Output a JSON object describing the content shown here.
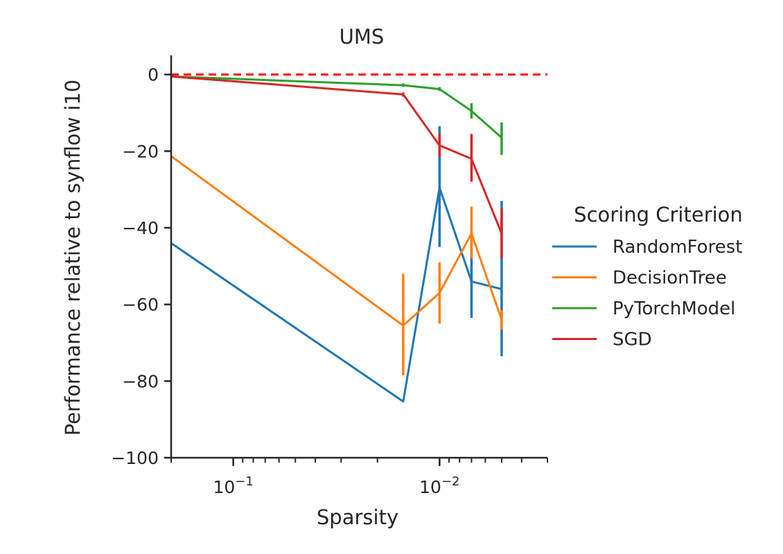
{
  "chart_data": {
    "type": "line",
    "title": "UMS",
    "xlabel": "Sparsity",
    "ylabel": "Performance relative to synflow i10",
    "x_scale": "log",
    "x_reversed": true,
    "xlim": [
      0.2,
      0.003
    ],
    "ylim": [
      -100,
      5
    ],
    "x_ticks": [
      {
        "value": 0.1,
        "label_base": "10",
        "label_exp": "−1"
      },
      {
        "value": 0.01,
        "label_base": "10",
        "label_exp": "−2"
      }
    ],
    "y_ticks": [
      {
        "value": 0,
        "label": "0"
      },
      {
        "value": -20,
        "label": "−20"
      },
      {
        "value": -40,
        "label": "−40"
      },
      {
        "value": -60,
        "label": "−60"
      },
      {
        "value": -80,
        "label": "−80"
      },
      {
        "value": -100,
        "label": "−100"
      }
    ],
    "reference_line": {
      "y": 0,
      "color": "#ff0000",
      "style": "dashed"
    },
    "legend": {
      "title": "Scoring Criterion",
      "placement": "outside-right"
    },
    "series": [
      {
        "name": "RandomForest",
        "color": "#1f77b4",
        "x": [
          0.2,
          0.015,
          0.01,
          0.007,
          0.005
        ],
        "y": [
          -44,
          -85.3,
          -29.5,
          -54,
          -56
        ],
        "err_low": [
          null,
          null,
          -45,
          -63.5,
          -73.5
        ],
        "err_high": [
          null,
          null,
          -13.5,
          -44.5,
          -33
        ]
      },
      {
        "name": "DecisionTree",
        "color": "#ff7f0e",
        "x": [
          0.2,
          0.015,
          0.01,
          0.007,
          0.005
        ],
        "y": [
          -21.3,
          -65.5,
          -57,
          -41.5,
          -64
        ],
        "err_low": [
          null,
          -78.5,
          -65,
          -48,
          -66.5
        ],
        "err_high": [
          null,
          -52,
          -49,
          -34.5,
          -61.5
        ]
      },
      {
        "name": "PyTorchModel",
        "color": "#2ca02c",
        "x": [
          0.2,
          0.015,
          0.01,
          0.007,
          0.005
        ],
        "y": [
          -0.5,
          -2.8,
          -3.8,
          -9.5,
          -16.5
        ],
        "err_low": [
          null,
          -3.2,
          -4.3,
          -11.5,
          -21
        ],
        "err_high": [
          null,
          -2.3,
          -3.3,
          -7.5,
          -12.5
        ]
      },
      {
        "name": "SGD",
        "color": "#d62728",
        "x": [
          0.2,
          0.015,
          0.01,
          0.007,
          0.005
        ],
        "y": [
          -0.5,
          -5.2,
          -18.5,
          -22,
          -41.5
        ],
        "err_low": [
          null,
          -5.8,
          -21.5,
          -28,
          -48
        ],
        "err_high": [
          null,
          -4.7,
          -15.5,
          -15.5,
          -35
        ]
      }
    ]
  }
}
